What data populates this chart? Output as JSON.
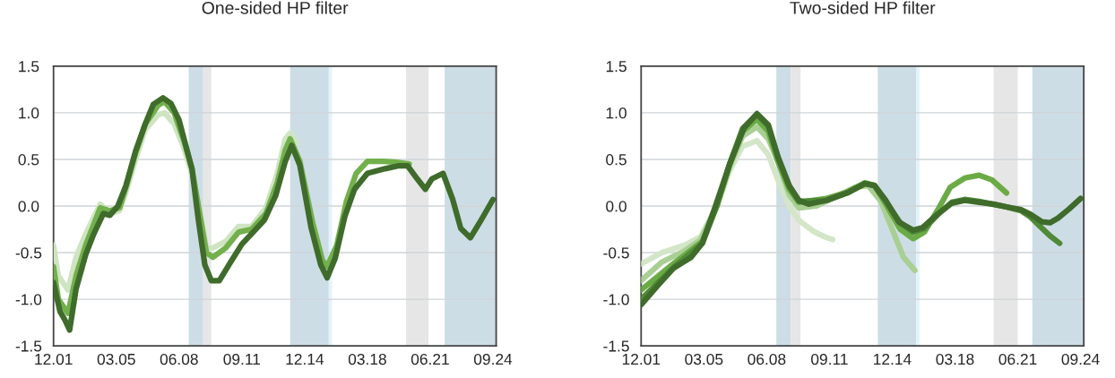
{
  "chart_data": [
    {
      "type": "line",
      "title": "One-sided HP filter",
      "xlim": [
        "2001-12",
        "2024-11"
      ],
      "ylim": [
        -1.5,
        1.5
      ],
      "yticks": [
        {
          "value": 1.5,
          "label": "1.5"
        },
        {
          "value": 1.0,
          "label": "1.0"
        },
        {
          "value": 0.5,
          "label": "0.5"
        },
        {
          "value": 0.0,
          "label": "0.0"
        },
        {
          "value": -0.5,
          "label": "-0.5"
        },
        {
          "value": -1.0,
          "label": "-1.0"
        },
        {
          "value": -1.5,
          "label": "-1.5"
        }
      ],
      "xticks": [
        {
          "value": "2001-12",
          "label": "12.01"
        },
        {
          "value": "2005-03",
          "label": "03.05"
        },
        {
          "value": "2008-06",
          "label": "06.08"
        },
        {
          "value": "2011-09",
          "label": "09.11"
        },
        {
          "value": "2014-12",
          "label": "12.14"
        },
        {
          "value": "2018-03",
          "label": "03.18"
        },
        {
          "value": "2021-06",
          "label": "06.21"
        },
        {
          "value": "2024-09",
          "label": "09.24"
        }
      ],
      "grid": "y",
      "line_style": "solid",
      "bands": [
        {
          "axis": "x",
          "from": "2008-12",
          "to": "2009-09",
          "color": "#cddde6"
        },
        {
          "axis": "x",
          "from": "2009-09",
          "to": "2010-02",
          "color": "#e6e6e6"
        },
        {
          "axis": "x",
          "from": "2014-03",
          "to": "2016-03",
          "color": "#cddde6"
        },
        {
          "axis": "x",
          "from": "2016-03",
          "to": "2016-05",
          "color": "#e3f3fb"
        },
        {
          "axis": "x",
          "from": "2020-03",
          "to": "2021-05",
          "color": "#e6e6e6"
        },
        {
          "axis": "x",
          "from": "2022-03",
          "to": "2024-11",
          "color": "#cddde6"
        }
      ],
      "series": [
        {
          "color": "#cfe4c2",
          "x": [
            "2001-12",
            "2002-03",
            "2002-09",
            "2003-02",
            "2003-08",
            "2004-05",
            "2004-11",
            "2005-05",
            "2005-09",
            "2006-03",
            "2006-09",
            "2007-05",
            "2007-09",
            "2008-03",
            "2008-09",
            "2009-02",
            "2009-07",
            "2009-11",
            "2010-03",
            "2010-11",
            "2011-07",
            "2012-03",
            "2012-12",
            "2013-07",
            "2013-12",
            "2014-03",
            "2014-07"
          ],
          "values": [
            -0.42,
            -0.75,
            -0.9,
            -0.55,
            -0.3,
            0.02,
            -0.08,
            -0.05,
            0.15,
            0.5,
            0.82,
            0.98,
            1.0,
            0.88,
            0.62,
            0.35,
            -0.1,
            -0.45,
            -0.45,
            -0.38,
            -0.22,
            -0.22,
            -0.02,
            0.35,
            0.72,
            0.78,
            0.68
          ]
        },
        {
          "color": "#72b04c",
          "x": [
            "2001-12",
            "2002-03",
            "2002-09",
            "2003-02",
            "2003-08",
            "2004-05",
            "2004-11",
            "2005-05",
            "2005-09",
            "2006-03",
            "2006-09",
            "2007-05",
            "2007-09",
            "2008-03",
            "2008-09",
            "2009-02",
            "2009-07",
            "2009-11",
            "2010-03",
            "2010-11",
            "2011-07",
            "2012-03",
            "2012-12",
            "2013-07",
            "2013-12",
            "2014-03",
            "2014-09",
            "2015-05",
            "2015-11",
            "2016-02",
            "2016-08",
            "2017-02",
            "2017-08",
            "2018-03",
            "2019-01",
            "2019-09",
            "2020-05"
          ],
          "values": [
            -0.65,
            -1.0,
            -1.15,
            -0.75,
            -0.42,
            -0.02,
            -0.05,
            -0.02,
            0.2,
            0.57,
            0.88,
            1.08,
            1.12,
            1.0,
            0.7,
            0.4,
            -0.1,
            -0.5,
            -0.55,
            -0.45,
            -0.28,
            -0.25,
            -0.08,
            0.25,
            0.6,
            0.72,
            0.48,
            -0.18,
            -0.58,
            -0.65,
            -0.42,
            0.05,
            0.35,
            0.48,
            0.48,
            0.47,
            0.45
          ]
        },
        {
          "color": "#3f6b2b",
          "x": [
            "2001-12",
            "2002-04",
            "2002-07",
            "2002-10",
            "2003-02",
            "2003-08",
            "2004-01",
            "2004-07",
            "2004-11",
            "2005-04",
            "2005-09",
            "2006-03",
            "2006-09",
            "2007-02",
            "2007-08",
            "2008-01",
            "2008-06",
            "2008-10",
            "2009-02",
            "2009-06",
            "2009-10",
            "2010-02",
            "2010-07",
            "2011-01",
            "2011-09",
            "2012-03",
            "2012-11",
            "2013-06",
            "2013-12",
            "2014-04",
            "2014-09",
            "2015-04",
            "2015-10",
            "2016-02",
            "2016-07",
            "2017-01",
            "2017-07",
            "2018-03",
            "2019-02",
            "2019-10",
            "2020-04",
            "2020-10",
            "2021-03",
            "2021-07",
            "2022-02",
            "2022-08",
            "2023-01",
            "2023-07",
            "2024-01",
            "2024-09"
          ],
          "values": [
            -0.82,
            -1.13,
            -1.22,
            -1.33,
            -0.89,
            -0.52,
            -0.3,
            -0.08,
            -0.1,
            0.0,
            0.22,
            0.59,
            0.88,
            1.09,
            1.16,
            1.1,
            0.92,
            0.66,
            0.4,
            -0.15,
            -0.63,
            -0.8,
            -0.8,
            -0.63,
            -0.41,
            -0.3,
            -0.15,
            0.11,
            0.48,
            0.65,
            0.44,
            -0.23,
            -0.63,
            -0.77,
            -0.56,
            -0.11,
            0.18,
            0.35,
            0.4,
            0.43,
            0.43,
            0.29,
            0.18,
            0.29,
            0.35,
            0.07,
            -0.24,
            -0.34,
            -0.17,
            0.07
          ]
        }
      ]
    },
    {
      "type": "line",
      "title": "Two-sided HP filter",
      "xlim": [
        "2001-12",
        "2024-11"
      ],
      "ylim": [
        -1.5,
        1.5
      ],
      "yticks": [
        {
          "value": 1.5,
          "label": "1.5"
        },
        {
          "value": 1.0,
          "label": "1.0"
        },
        {
          "value": 0.5,
          "label": "0.5"
        },
        {
          "value": 0.0,
          "label": "0.0"
        },
        {
          "value": -0.5,
          "label": "-0.5"
        },
        {
          "value": -1.0,
          "label": "-1.0"
        },
        {
          "value": -1.5,
          "label": "-1.5"
        }
      ],
      "xticks": [
        {
          "value": "2001-12",
          "label": "12.01"
        },
        {
          "value": "2005-03",
          "label": "03.05"
        },
        {
          "value": "2008-06",
          "label": "06.08"
        },
        {
          "value": "2011-09",
          "label": "09.11"
        },
        {
          "value": "2014-12",
          "label": "12.14"
        },
        {
          "value": "2018-03",
          "label": "03.18"
        },
        {
          "value": "2021-06",
          "label": "06.21"
        },
        {
          "value": "2024-09",
          "label": "09.24"
        }
      ],
      "grid": "y",
      "line_style": "solid",
      "bands": [
        {
          "axis": "x",
          "from": "2008-12",
          "to": "2009-09",
          "color": "#cddde6"
        },
        {
          "axis": "x",
          "from": "2009-09",
          "to": "2010-03",
          "color": "#e6e6e6"
        },
        {
          "axis": "x",
          "from": "2014-03",
          "to": "2016-03",
          "color": "#cddde6"
        },
        {
          "axis": "x",
          "from": "2016-03",
          "to": "2016-05",
          "color": "#e3f3fb"
        },
        {
          "axis": "x",
          "from": "2020-03",
          "to": "2021-06",
          "color": "#e6e6e6"
        },
        {
          "axis": "x",
          "from": "2022-03",
          "to": "2024-11",
          "color": "#cddde6"
        }
      ],
      "series": [
        {
          "color": "#d3e6c8",
          "x": [
            "2001-12",
            "2003-01",
            "2004-03",
            "2005-01",
            "2005-11",
            "2006-07",
            "2007-03",
            "2007-12",
            "2008-07",
            "2009-01",
            "2009-08",
            "2010-02",
            "2010-07",
            "2010-12",
            "2011-06",
            "2011-11"
          ],
          "values": [
            -0.62,
            -0.5,
            -0.42,
            -0.33,
            0.0,
            0.38,
            0.64,
            0.7,
            0.55,
            0.28,
            0.0,
            -0.15,
            -0.22,
            -0.28,
            -0.33,
            -0.36
          ]
        },
        {
          "color": "#a9cf94",
          "x": [
            "2001-12",
            "2003-01",
            "2004-03",
            "2005-01",
            "2005-11",
            "2006-07",
            "2007-03",
            "2007-12",
            "2008-07",
            "2009-01",
            "2009-08",
            "2010-02",
            "2011-01",
            "2012-01",
            "2013-01",
            "2013-09",
            "2014-05",
            "2014-12",
            "2015-07",
            "2016-02"
          ],
          "values": [
            -0.8,
            -0.6,
            -0.48,
            -0.36,
            0.0,
            0.42,
            0.75,
            0.85,
            0.72,
            0.48,
            0.12,
            -0.02,
            0.0,
            0.1,
            0.2,
            0.22,
            0.05,
            -0.25,
            -0.55,
            -0.69
          ]
        },
        {
          "color": "#6aab45",
          "x": [
            "2001-12",
            "2003-08",
            "2005-02",
            "2005-11",
            "2006-07",
            "2007-03",
            "2007-12",
            "2008-07",
            "2009-01",
            "2009-08",
            "2010-02",
            "2011-07",
            "2012-08",
            "2013-07",
            "2014-01",
            "2014-08",
            "2015-05",
            "2016-01",
            "2016-08",
            "2017-05",
            "2017-12",
            "2018-09",
            "2019-06",
            "2020-02",
            "2020-11"
          ],
          "values": [
            -0.9,
            -0.62,
            -0.38,
            0.0,
            0.45,
            0.8,
            0.93,
            0.8,
            0.48,
            0.18,
            0.04,
            0.08,
            0.15,
            0.25,
            0.22,
            0.02,
            -0.25,
            -0.35,
            -0.28,
            -0.02,
            0.2,
            0.3,
            0.33,
            0.28,
            0.14
          ]
        },
        {
          "color": "#4f8a36",
          "x": [
            "2001-12",
            "2003-08",
            "2005-02",
            "2005-11",
            "2006-07",
            "2007-03",
            "2007-12",
            "2008-07",
            "2009-01",
            "2009-08",
            "2010-02",
            "2011-07",
            "2012-08",
            "2013-07",
            "2014-01",
            "2014-08",
            "2015-05",
            "2016-01",
            "2016-08",
            "2017-05",
            "2018-01",
            "2018-09",
            "2019-06",
            "2020-02",
            "2020-11",
            "2021-08",
            "2022-02",
            "2022-08",
            "2023-02",
            "2023-08"
          ],
          "values": [
            -1.0,
            -0.66,
            -0.4,
            0.0,
            0.45,
            0.83,
            0.98,
            0.86,
            0.52,
            0.21,
            0.05,
            0.06,
            0.14,
            0.24,
            0.22,
            0.05,
            -0.18,
            -0.28,
            -0.24,
            -0.08,
            0.04,
            0.07,
            0.05,
            0.02,
            -0.01,
            -0.05,
            -0.12,
            -0.22,
            -0.32,
            -0.4
          ]
        },
        {
          "color": "#3f6b2b",
          "x": [
            "2001-12",
            "2002-10",
            "2003-08",
            "2004-07",
            "2005-02",
            "2005-10",
            "2006-07",
            "2007-04",
            "2007-12",
            "2008-07",
            "2009-01",
            "2009-08",
            "2010-02",
            "2010-08",
            "2011-07",
            "2012-08",
            "2013-07",
            "2014-01",
            "2014-08",
            "2015-04",
            "2016-01",
            "2016-07",
            "2017-04",
            "2018-01",
            "2018-09",
            "2019-06",
            "2020-03",
            "2020-11",
            "2021-08",
            "2022-02",
            "2022-09",
            "2023-02",
            "2023-07",
            "2024-02",
            "2024-09"
          ],
          "values": [
            -1.06,
            -0.86,
            -0.67,
            -0.55,
            -0.4,
            -0.01,
            0.45,
            0.84,
            0.99,
            0.87,
            0.53,
            0.22,
            0.06,
            0.02,
            0.06,
            0.14,
            0.24,
            0.22,
            0.06,
            -0.17,
            -0.26,
            -0.23,
            -0.09,
            0.03,
            0.06,
            0.04,
            0.02,
            -0.01,
            -0.04,
            -0.09,
            -0.17,
            -0.18,
            -0.13,
            -0.03,
            0.08
          ]
        }
      ]
    }
  ]
}
